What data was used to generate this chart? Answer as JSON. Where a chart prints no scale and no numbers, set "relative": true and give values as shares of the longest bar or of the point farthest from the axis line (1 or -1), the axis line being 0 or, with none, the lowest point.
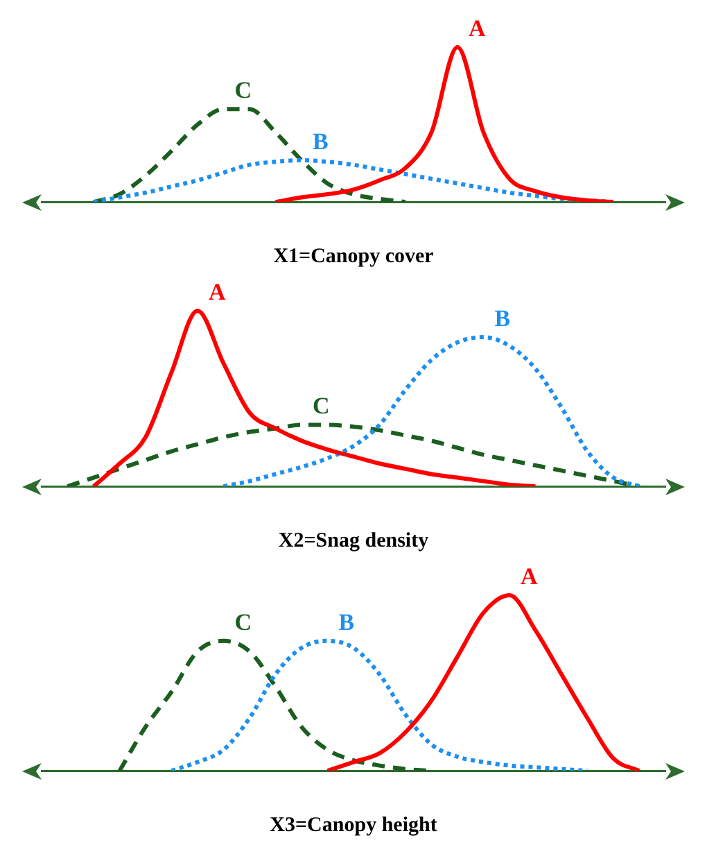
{
  "chart_data": [
    {
      "type": "line",
      "relative": true,
      "marker": "none",
      "legend": false,
      "xlabel": "X1=Canopy cover",
      "categories": [
        null,
        null,
        null,
        null,
        null,
        null,
        null,
        null,
        null,
        null,
        null,
        null,
        null,
        null,
        null,
        null,
        null,
        null,
        null,
        null,
        null,
        null,
        null,
        null,
        null
      ],
      "series": [
        {
          "name": "A",
          "color": "#ff0000",
          "line_style": "solid",
          "values": [
            null,
            null,
            null,
            null,
            null,
            null,
            null,
            null,
            null,
            0,
            0.03,
            0.05,
            0.08,
            0.14,
            0.22,
            0.45,
            1,
            0.45,
            0.15,
            0.07,
            0.03,
            0.01,
            0,
            null,
            null
          ]
        },
        {
          "name": "B",
          "color": "#1e8ff0",
          "line_style": "dotted",
          "values": [
            null,
            null,
            0,
            0.03,
            0.06,
            0.1,
            0.14,
            0.19,
            0.24,
            0.26,
            0.27,
            0.26,
            0.24,
            0.21,
            0.18,
            0.15,
            0.12,
            0.09,
            0.06,
            0.04,
            0.02,
            0.01,
            0,
            null,
            null
          ]
        },
        {
          "name": "C",
          "color": "#1b5e20",
          "line_style": "dashed",
          "values": [
            null,
            null,
            0,
            0.05,
            0.17,
            0.33,
            0.5,
            0.6,
            0.6,
            0.45,
            0.27,
            0.12,
            0.05,
            0.02,
            0,
            null,
            null,
            null,
            null,
            null,
            null,
            null,
            null,
            null,
            null
          ]
        }
      ]
    },
    {
      "type": "line",
      "relative": true,
      "marker": "none",
      "legend": false,
      "xlabel": "X2=Snag density",
      "categories": [
        null,
        null,
        null,
        null,
        null,
        null,
        null,
        null,
        null,
        null,
        null,
        null,
        null,
        null,
        null,
        null,
        null,
        null,
        null,
        null,
        null,
        null,
        null,
        null,
        null
      ],
      "series": [
        {
          "name": "A",
          "color": "#ff0000",
          "line_style": "solid",
          "values": [
            null,
            null,
            0,
            0.13,
            0.28,
            0.65,
            1,
            0.7,
            0.42,
            0.33,
            0.26,
            0.21,
            0.17,
            0.13,
            0.1,
            0.07,
            0.05,
            0.03,
            0.01,
            0,
            null,
            null,
            null,
            null,
            null
          ]
        },
        {
          "name": "B",
          "color": "#1e8ff0",
          "line_style": "dotted",
          "values": [
            null,
            null,
            null,
            null,
            null,
            null,
            null,
            0,
            0.03,
            0.07,
            0.11,
            0.16,
            0.23,
            0.35,
            0.55,
            0.72,
            0.82,
            0.85,
            0.8,
            0.67,
            0.45,
            0.2,
            0.05,
            0,
            null
          ]
        },
        {
          "name": "C",
          "color": "#1b5e20",
          "line_style": "dashed",
          "values": [
            null,
            0,
            0.05,
            0.1,
            0.15,
            0.2,
            0.24,
            0.28,
            0.31,
            0.33,
            0.35,
            0.35,
            0.34,
            0.32,
            0.29,
            0.26,
            0.22,
            0.18,
            0.15,
            0.12,
            0.09,
            0.06,
            0.03,
            0,
            null
          ]
        }
      ]
    },
    {
      "type": "line",
      "relative": true,
      "marker": "none",
      "legend": false,
      "xlabel": "X3=Canopy height",
      "categories": [
        null,
        null,
        null,
        null,
        null,
        null,
        null,
        null,
        null,
        null,
        null,
        null,
        null,
        null,
        null,
        null,
        null,
        null,
        null,
        null,
        null,
        null,
        null,
        null,
        null
      ],
      "series": [
        {
          "name": "A",
          "color": "#ff0000",
          "line_style": "solid",
          "values": [
            null,
            null,
            null,
            null,
            null,
            null,
            null,
            null,
            null,
            null,
            null,
            0,
            0.05,
            0.1,
            0.22,
            0.4,
            0.65,
            0.9,
            1,
            0.8,
            0.55,
            0.3,
            0.07,
            0,
            null
          ]
        },
        {
          "name": "B",
          "color": "#1e8ff0",
          "line_style": "dotted",
          "values": [
            null,
            null,
            null,
            null,
            null,
            0,
            0.05,
            0.12,
            0.3,
            0.55,
            0.7,
            0.74,
            0.7,
            0.55,
            0.32,
            0.15,
            0.08,
            0.05,
            0.03,
            0.02,
            0.01,
            0,
            null,
            null,
            null
          ]
        },
        {
          "name": "C",
          "color": "#1b5e20",
          "line_style": "dashed",
          "values": [
            null,
            null,
            null,
            0,
            0.25,
            0.45,
            0.68,
            0.74,
            0.68,
            0.48,
            0.25,
            0.12,
            0.06,
            0.03,
            0.01,
            0,
            null,
            null,
            null,
            null,
            null,
            null,
            null,
            null,
            null
          ]
        }
      ]
    }
  ]
}
